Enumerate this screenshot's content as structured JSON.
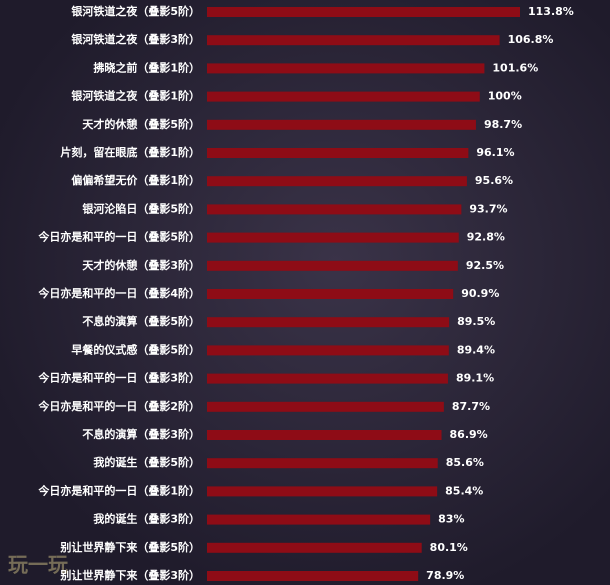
{
  "chart_data": {
    "type": "bar",
    "orientation": "horizontal",
    "categories": [
      "银河铁道之夜（叠影5阶）",
      "银河铁道之夜（叠影3阶）",
      "拂晓之前（叠影1阶）",
      "银河铁道之夜（叠影1阶）",
      "天才的休憩（叠影5阶）",
      "片刻，留在眼底（叠影1阶）",
      "偏偏希望无价（叠影1阶）",
      "银河沦陷日（叠影5阶）",
      "今日亦是和平的一日（叠影5阶）",
      "天才的休憩（叠影3阶）",
      "今日亦是和平的一日（叠影4阶）",
      "不息的演算（叠影5阶）",
      "早餐的仪式感（叠影5阶）",
      "今日亦是和平的一日（叠影3阶）",
      "今日亦是和平的一日（叠影2阶）",
      "不息的演算（叠影3阶）",
      "我的诞生（叠影5阶）",
      "今日亦是和平的一日（叠影1阶）",
      "我的诞生（叠影3阶）",
      "别让世界静下来（叠影5阶）",
      "别让世界静下来（叠影3阶）"
    ],
    "values": [
      113.8,
      106.8,
      101.6,
      100,
      98.7,
      96.1,
      95.6,
      93.7,
      92.8,
      92.5,
      90.9,
      89.5,
      89.4,
      89.1,
      87.7,
      86.9,
      85.6,
      85.4,
      83,
      80.1,
      78.9
    ],
    "value_labels": [
      "113.8%",
      "106.8%",
      "101.6%",
      "100%",
      "98.7%",
      "96.1%",
      "95.6%",
      "93.7%",
      "92.8%",
      "92.5%",
      "90.9%",
      "89.5%",
      "89.4%",
      "89.1%",
      "87.7%",
      "86.9%",
      "85.6%",
      "85.4%",
      "83%",
      "80.1%",
      "78.9%"
    ],
    "color": "#8e0c16"
  },
  "watermark": "玩一玩"
}
